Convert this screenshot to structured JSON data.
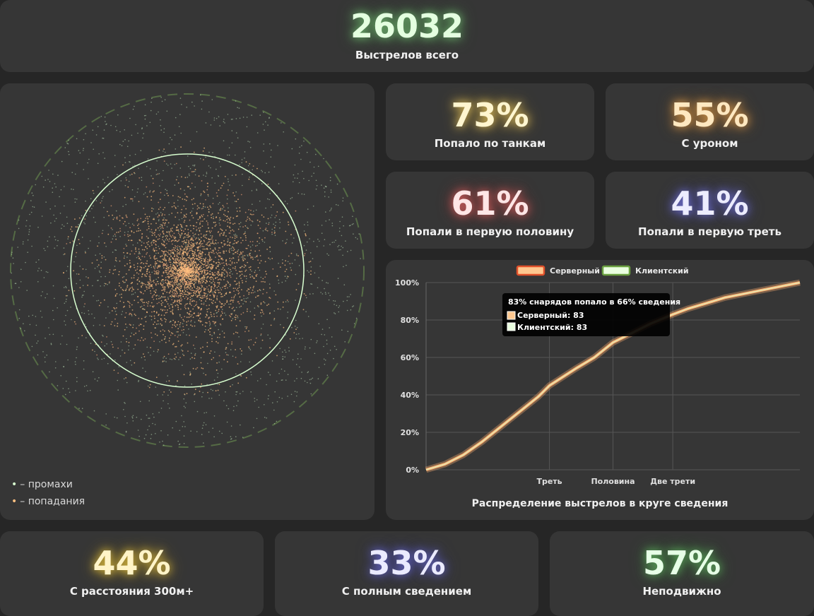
{
  "header": {
    "total_value": "26032",
    "total_label": "Выстрелов всего"
  },
  "stats": {
    "tanks": {
      "value": "73%",
      "label": "Попало по танкам",
      "color": "#fff6d0",
      "glow": "#e0c060"
    },
    "damage": {
      "value": "55%",
      "label": "С уроном",
      "color": "#ffe8c0",
      "glow": "#e0a050"
    },
    "first_half": {
      "value": "61%",
      "label": "Попали в первую половину",
      "color": "#ffe6e6",
      "glow": "#d06060"
    },
    "first_third": {
      "value": "41%",
      "label": "Попали в первую треть",
      "color": "#ececff",
      "glow": "#7070d0"
    },
    "distance": {
      "value": "44%",
      "label": "С расстояния 300м+",
      "color": "#fff4c8",
      "glow": "#d8b840"
    },
    "full_aim": {
      "value": "33%",
      "label": "С полным сведением",
      "color": "#eaeaff",
      "glow": "#6868c8"
    },
    "stationary": {
      "value": "57%",
      "label": "Неподвижно",
      "color": "#e6ffe6",
      "glow": "#60b060"
    }
  },
  "scatter": {
    "legend_miss": "– промахи",
    "legend_hit": "– попадания",
    "miss_color": "#d8ffd0",
    "hit_color": "#ffc080",
    "ring_color": "#d8ffd0"
  },
  "tooltip": {
    "title": "83% снарядов попало в 66% сведения",
    "server_line": "Серверный: 83",
    "client_line": "Клиентский: 83"
  },
  "chart_data": {
    "type": "line",
    "title": "Распределение выстрелов в круге сведения",
    "x_tick_labels": [
      "Треть",
      "Половина",
      "Две трети"
    ],
    "x_tick_positions": [
      33,
      50,
      66
    ],
    "xlim": [
      0,
      100
    ],
    "ylim": [
      0,
      100
    ],
    "y_ticks": [
      "0%",
      "20%",
      "40%",
      "60%",
      "80%",
      "100%"
    ],
    "legend": [
      "Серверный",
      "Клиентский"
    ],
    "legend_placement": "top",
    "grid": true,
    "x": [
      0,
      5,
      10,
      15,
      20,
      25,
      30,
      33,
      40,
      45,
      50,
      55,
      60,
      66,
      70,
      75,
      80,
      85,
      90,
      95,
      100
    ],
    "series": [
      {
        "name": "Серверный",
        "color": "#ffb070",
        "values": [
          0,
          3,
          8,
          15,
          23,
          31,
          39,
          45,
          54,
          60,
          68,
          73,
          78,
          83,
          86,
          89,
          92,
          94,
          96,
          98,
          100
        ]
      },
      {
        "name": "Клиентский",
        "color": "#d8ffd0",
        "values": [
          0,
          3,
          8,
          15,
          23,
          31,
          39,
          45,
          54,
          60,
          68,
          73,
          78,
          83,
          86,
          89,
          92,
          94,
          96,
          98,
          100
        ]
      }
    ]
  }
}
